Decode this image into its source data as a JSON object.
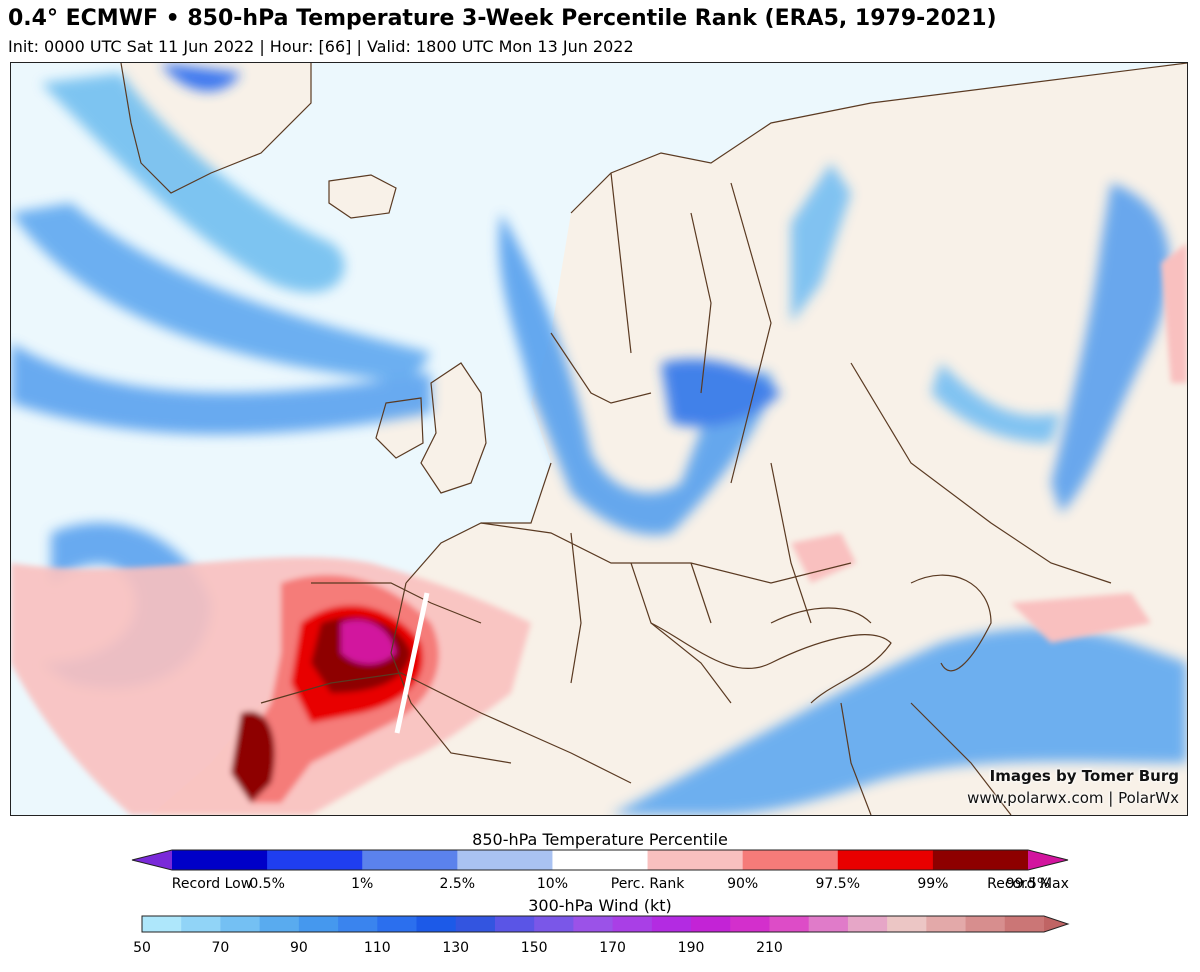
{
  "header": {
    "title": "0.4° ECMWF • 850-hPa Temperature 3-Week Percentile Rank (ERA5, 1979-2021)",
    "subtitle": "Init: 0000 UTC Sat 11 Jun 2022 | Hour: [66] | Valid: 1800 UTC Mon 13 Jun 2022"
  },
  "map": {
    "credit_line1": "Images by Tomer Burg",
    "credit_line2": "www.polarwx.com | PolarWx",
    "colors": {
      "ocean": "#ecf8fd",
      "land": "#f8f1e8",
      "border": "#5a3a22"
    }
  },
  "colorbar_temperature": {
    "title": "850-hPa Temperature Percentile",
    "colors": [
      "#7a2ad9",
      "#0000c8",
      "#1f3ef0",
      "#5b82ec",
      "#a9c2f2",
      "#ffffff",
      "#f9c0bf",
      "#f57b79",
      "#e80000",
      "#8e0000",
      "#d2149e"
    ],
    "labels": [
      "Record Low",
      "0.5%",
      "1%",
      "2.5%",
      "10%",
      "Perc. Rank",
      "90%",
      "97.5%",
      "99%",
      "99.5%",
      "Record Max"
    ]
  },
  "colorbar_wind": {
    "title": "300-hPa Wind (kt)",
    "colors": [
      "#aee7fb",
      "#91d4f7",
      "#74c0f3",
      "#59abef",
      "#4598ee",
      "#3a84ee",
      "#2b6fee",
      "#1c5ae8",
      "#3355e0",
      "#5a55e6",
      "#7a57e8",
      "#9b52e8",
      "#a93fe6",
      "#b32be2",
      "#c323d6",
      "#d32fcc",
      "#dd4cc7",
      "#e07bc9",
      "#e6a6c7",
      "#ecc6c5",
      "#e3a9a9",
      "#d78e8e",
      "#cb7676",
      "#c06464"
    ],
    "labels": [
      "50",
      "70",
      "90",
      "110",
      "130",
      "150",
      "170",
      "190",
      "210"
    ]
  }
}
